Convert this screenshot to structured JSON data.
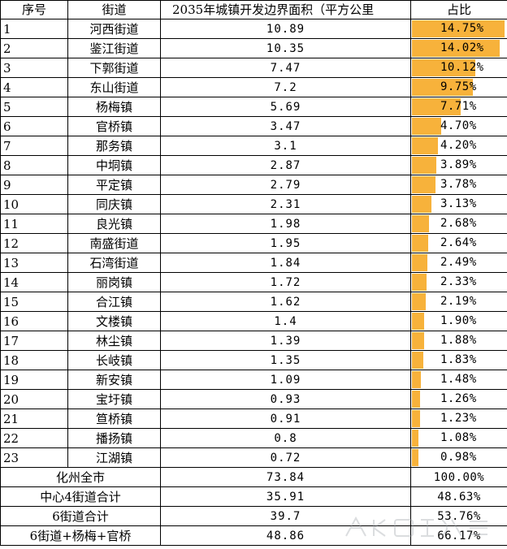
{
  "header": {
    "col_index": "序号",
    "col_name": "街道",
    "col_area": "2035年城镇开发边界面积（平方公里",
    "col_share": "占比"
  },
  "rows": [
    {
      "index": "1",
      "name": "河西街道",
      "area": "10.89",
      "share": "14.75%",
      "share_value": 14.75
    },
    {
      "index": "2",
      "name": "鉴江街道",
      "area": "10.35",
      "share": "14.02%",
      "share_value": 14.02
    },
    {
      "index": "3",
      "name": "下郭街道",
      "area": "7.47",
      "share": "10.12%",
      "share_value": 10.12
    },
    {
      "index": "4",
      "name": "东山街道",
      "area": "7.2",
      "share": "9.75%",
      "share_value": 9.75
    },
    {
      "index": "5",
      "name": "杨梅镇",
      "area": "5.69",
      "share": "7.71%",
      "share_value": 7.71
    },
    {
      "index": "6",
      "name": "官桥镇",
      "area": "3.47",
      "share": "4.70%",
      "share_value": 4.7
    },
    {
      "index": "7",
      "name": "那务镇",
      "area": "3.1",
      "share": "4.20%",
      "share_value": 4.2
    },
    {
      "index": "8",
      "name": "中垌镇",
      "area": "2.87",
      "share": "3.89%",
      "share_value": 3.89
    },
    {
      "index": "9",
      "name": "平定镇",
      "area": "2.79",
      "share": "3.78%",
      "share_value": 3.78
    },
    {
      "index": "10",
      "name": "同庆镇",
      "area": "2.31",
      "share": "3.13%",
      "share_value": 3.13
    },
    {
      "index": "11",
      "name": "良光镇",
      "area": "1.98",
      "share": "2.68%",
      "share_value": 2.68
    },
    {
      "index": "12",
      "name": "南盛街道",
      "area": "1.95",
      "share": "2.64%",
      "share_value": 2.64
    },
    {
      "index": "13",
      "name": "石湾街道",
      "area": "1.84",
      "share": "2.49%",
      "share_value": 2.49
    },
    {
      "index": "14",
      "name": "丽岗镇",
      "area": "1.72",
      "share": "2.33%",
      "share_value": 2.33
    },
    {
      "index": "15",
      "name": "合江镇",
      "area": "1.62",
      "share": "2.19%",
      "share_value": 2.19
    },
    {
      "index": "16",
      "name": "文楼镇",
      "area": "1.4",
      "share": "1.90%",
      "share_value": 1.9
    },
    {
      "index": "17",
      "name": "林尘镇",
      "area": "1.39",
      "share": "1.88%",
      "share_value": 1.88
    },
    {
      "index": "18",
      "name": "长岐镇",
      "area": "1.35",
      "share": "1.83%",
      "share_value": 1.83
    },
    {
      "index": "19",
      "name": "新安镇",
      "area": "1.09",
      "share": "1.48%",
      "share_value": 1.48
    },
    {
      "index": "20",
      "name": "宝圩镇",
      "area": "0.93",
      "share": "1.26%",
      "share_value": 1.26
    },
    {
      "index": "21",
      "name": "笪桥镇",
      "area": "0.91",
      "share": "1.23%",
      "share_value": 1.23
    },
    {
      "index": "22",
      "name": "播扬镇",
      "area": "0.8",
      "share": "1.08%",
      "share_value": 1.08
    },
    {
      "index": "23",
      "name": "江湖镇",
      "area": "0.72",
      "share": "0.98%",
      "share_value": 0.98
    }
  ],
  "bar_max_value": 14.75,
  "bar_color": "#f7b23b",
  "summary": [
    {
      "label": "化州全市",
      "area": "73.84",
      "share": "100.00%"
    },
    {
      "label": "中心4街道合计",
      "area": "35.91",
      "share": "48.63%"
    },
    {
      "label": "6街道合计",
      "area": "39.7",
      "share": "53.76%"
    },
    {
      "label": "6街道+杨梅+官桥",
      "area": "48.86",
      "share": "66.17%"
    }
  ]
}
